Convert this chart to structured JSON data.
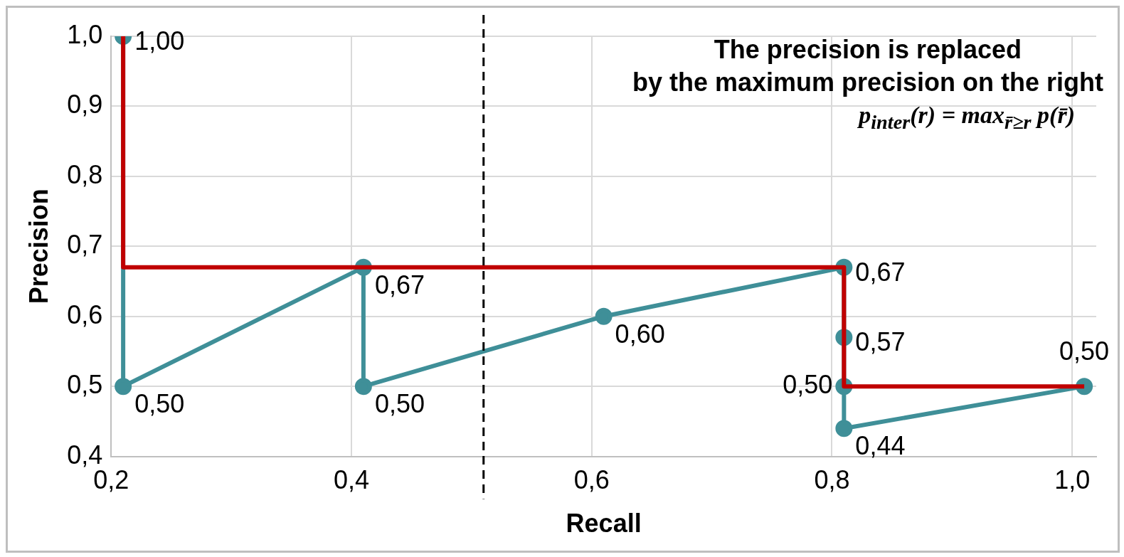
{
  "chart_data": {
    "type": "line",
    "xlabel": "Recall",
    "ylabel": "Precision",
    "xlim": [
      0.2,
      1.02
    ],
    "ylim": [
      0.4,
      1.0
    ],
    "xticks": [
      {
        "value": 0.2,
        "label": "0,2"
      },
      {
        "value": 0.4,
        "label": "0,4"
      },
      {
        "value": 0.6,
        "label": "0,6"
      },
      {
        "value": 0.8,
        "label": "0,8"
      },
      {
        "value": 1.0,
        "label": "1,0"
      }
    ],
    "yticks": [
      {
        "value": 0.4,
        "label": "0,4"
      },
      {
        "value": 0.5,
        "label": "0,5"
      },
      {
        "value": 0.6,
        "label": "0,6"
      },
      {
        "value": 0.7,
        "label": "0,7"
      },
      {
        "value": 0.8,
        "label": "0,8"
      },
      {
        "value": 0.9,
        "label": "0,9"
      },
      {
        "value": 1.0,
        "label": "1,0"
      }
    ],
    "grid": true,
    "series": [
      {
        "color": "#3f8f98",
        "marker": "circle",
        "x": [
          0.21,
          0.21,
          0.41,
          0.41,
          0.61,
          0.81,
          0.81,
          0.81,
          0.81,
          1.01
        ],
        "values": [
          1.0,
          0.5,
          0.67,
          0.5,
          0.6,
          0.67,
          0.57,
          0.5,
          0.44,
          0.5
        ],
        "value_labels": [
          "1,00",
          "0,50",
          "0,67",
          "0,50",
          "0,60",
          "0,67",
          "0,57",
          "0,50",
          "0,44",
          "0,50"
        ]
      },
      {
        "color": "#c00000",
        "marker": "none",
        "x": [
          0.21,
          0.21,
          0.81,
          0.81,
          1.01
        ],
        "values": [
          1.0,
          0.67,
          0.67,
          0.5,
          0.5
        ]
      }
    ],
    "ref_lines": [
      {
        "axis": "x",
        "value": 0.51,
        "color": "#000000",
        "line_style": "dashed"
      }
    ],
    "annotations": [
      "The precision is replaced",
      "by the maximum precision on the right",
      "p$_{inter}$(r) = max$_{r̄≥r}$ p(r̄)"
    ]
  }
}
